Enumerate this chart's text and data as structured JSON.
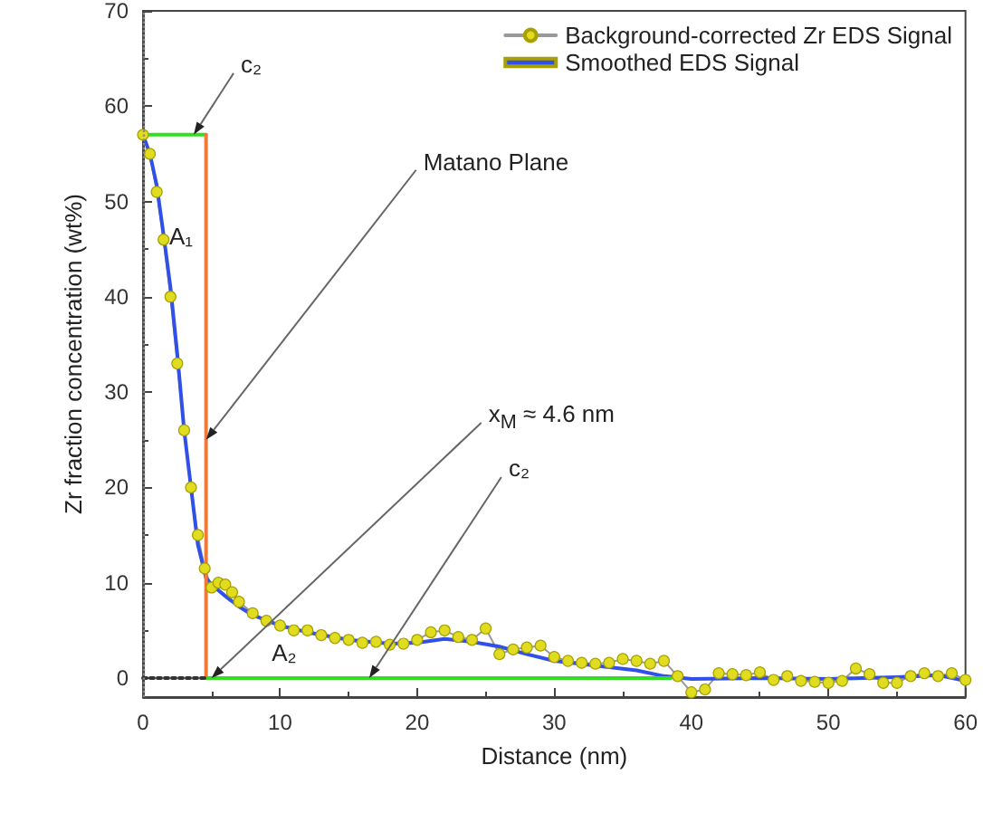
{
  "chart_data": {
    "type": "line",
    "xlabel": "Distance (nm)",
    "ylabel": "Zr fraction concentration (wt%)",
    "xlim": [
      0,
      60
    ],
    "xticks": [
      0,
      10,
      20,
      30,
      40,
      50,
      60
    ],
    "ylim": [
      -2,
      70
    ],
    "yticks": [
      0,
      10,
      20,
      30,
      40,
      50,
      60,
      70
    ],
    "grid": false,
    "legend": "top right",
    "series": [
      {
        "name": "Background-corrected Zr EDS Signal",
        "color": "#e0dc20",
        "marker": "circle",
        "x": [
          0,
          0.5,
          1,
          1.5,
          2,
          2.5,
          3,
          3.5,
          4,
          4.5,
          5,
          5.5,
          6,
          6.5,
          7,
          8,
          9,
          10,
          11,
          12,
          13,
          14,
          15,
          16,
          17,
          18,
          19,
          20,
          21,
          22,
          23,
          24,
          25,
          26,
          27,
          28,
          29,
          30,
          31,
          32,
          33,
          34,
          35,
          36,
          37,
          38,
          39,
          40,
          41,
          42,
          43,
          44,
          45,
          46,
          47,
          48,
          49,
          50,
          51,
          52,
          53,
          54,
          55,
          56,
          57,
          58,
          59,
          60
        ],
        "values": [
          57,
          55,
          51,
          46,
          40,
          33,
          26,
          20,
          15,
          11.5,
          9.5,
          10,
          9.8,
          9,
          8,
          6.8,
          6,
          5.5,
          5,
          5,
          4.5,
          4.2,
          4,
          3.7,
          3.8,
          3.5,
          3.6,
          4,
          4.8,
          5,
          4.3,
          4,
          5.2,
          2.5,
          3,
          3.2,
          3.4,
          2.2,
          1.8,
          1.6,
          1.5,
          1.6,
          2,
          1.8,
          1.5,
          1.8,
          0.2,
          -1.5,
          -1.2,
          0.5,
          0.4,
          0.3,
          0.6,
          -0.2,
          0.2,
          -0.3,
          -0.4,
          -0.5,
          -0.3,
          1,
          0.4,
          -0.5,
          -0.5,
          0.2,
          0.5,
          0.2,
          0.5,
          -0.2
        ]
      },
      {
        "name": "Smoothed EDS Signal",
        "color": "#3050e8",
        "marker": "none",
        "x": [
          0,
          0.5,
          1,
          1.5,
          2,
          2.5,
          3,
          3.5,
          4,
          4.6,
          5,
          6,
          7,
          8,
          10,
          12,
          15,
          18,
          20,
          22,
          24,
          26,
          28,
          30,
          33,
          36,
          38,
          40,
          45,
          50,
          55,
          58,
          60
        ],
        "values": [
          57,
          55,
          51.7,
          46.5,
          41,
          34,
          26,
          20,
          14,
          10.5,
          9.8,
          8.6,
          7.5,
          6.6,
          5.5,
          4.8,
          4,
          3.6,
          3.7,
          4.1,
          3.8,
          3.3,
          2.5,
          1.8,
          1.3,
          0.8,
          0.2,
          -0.1,
          0,
          -0.1,
          0.1,
          0.3,
          -0.3
        ]
      },
      {
        "color": "#33dd22",
        "marker": "none",
        "x": [
          0,
          4.6
        ],
        "values": [
          57,
          57
        ]
      },
      {
        "color": "#f07838",
        "marker": "none",
        "x": [
          4.6,
          4.6
        ],
        "values": [
          0,
          57
        ]
      },
      {
        "color": "#33dd22",
        "marker": "none",
        "x": [
          4.6,
          38.5
        ],
        "values": [
          0,
          0
        ]
      },
      {
        "color": "#333333",
        "marker": "none",
        "line_style": "dotted",
        "x": [
          0,
          4.6
        ],
        "values": [
          0,
          0
        ]
      }
    ],
    "ref_lines": [
      {
        "axis": "x",
        "value": 0,
        "color": "#888888",
        "line_style": "dotted"
      }
    ],
    "annotations": [
      {
        "text": "c₂",
        "x": 3.7,
        "y": 57
      },
      {
        "text": "Matano Plane",
        "x": 4.6,
        "y": 25
      },
      {
        "text": "x$_{M}$ ≈ 4.6 nm",
        "x": 5,
        "y": 0
      },
      {
        "text": "c₂",
        "x": 16.5,
        "y": 0
      },
      "A₁",
      "A₂"
    ]
  }
}
